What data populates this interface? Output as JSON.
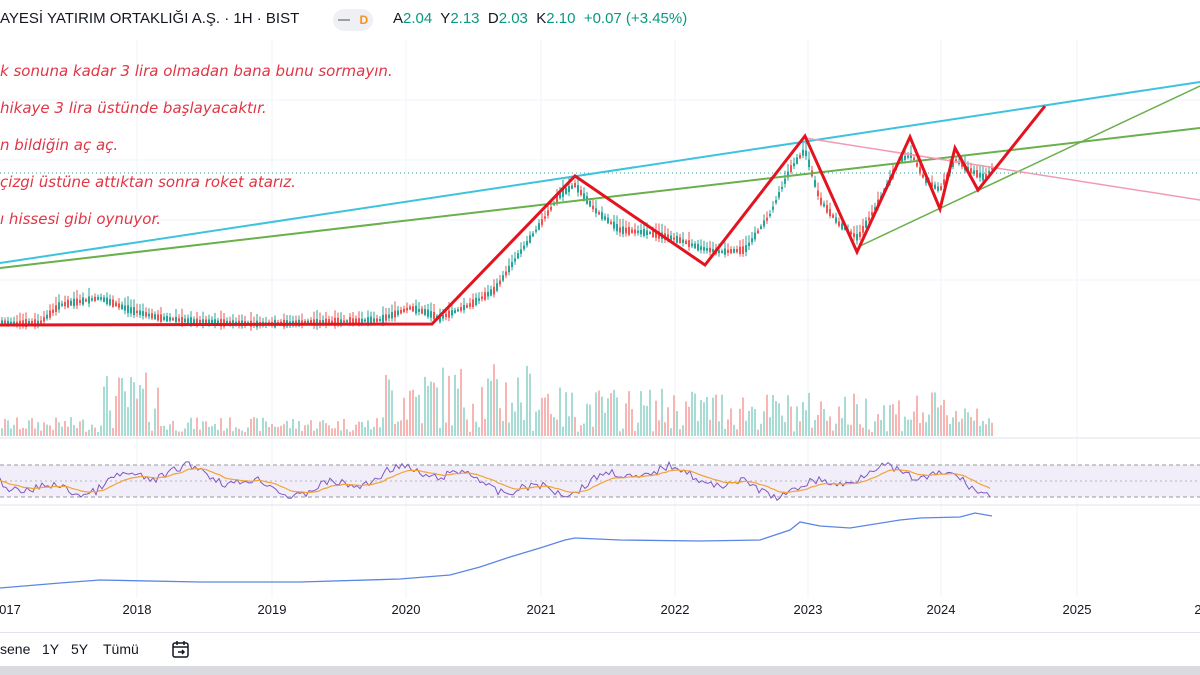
{
  "header": {
    "symbol_title": "AYESİ YATIRIM ORTAKLIĞI A.Ş. · 1H · BIST",
    "badge": "D",
    "ohlc": {
      "o_key": "A",
      "o_val": "2.04",
      "h_key": "Y",
      "h_val": "2.13",
      "l_key": "D",
      "l_val": "2.03",
      "c_key": "K",
      "c_val": "2.10",
      "change": "+0.07 (+3.45%)"
    }
  },
  "notes": [
    "k sonuna kadar 3 lira olmadan bana bunu sormayın.",
    "hikaye 3 lira üstünde başlayacaktır.",
    "n bildiğin aç aç.",
    "çizgi üstüne attıktan sonra roket atarız.",
    "ı hissesi gibi oynuyor."
  ],
  "x_axis": {
    "labels": [
      "017",
      "2018",
      "2019",
      "2020",
      "2021",
      "2022",
      "2023",
      "2024",
      "2025",
      "2"
    ]
  },
  "bottom_bar": {
    "ranges": [
      "sene",
      "1Y",
      "5Y",
      "Tümü"
    ],
    "icon": "calendar-goto-icon"
  },
  "colors": {
    "up": "#26a69a",
    "down": "#ef5350",
    "annotation_red": "#e3141f",
    "trend_cyan": "#3ec3dd",
    "trend_green": "#6ab04c",
    "trend_pink": "#f29bb0",
    "rsi_line": "#7e57c2",
    "rsi_ma": "#f0a33a",
    "lower_line": "#5b86e5"
  },
  "chart_data": {
    "type": "line",
    "title": "",
    "x": [
      "2017",
      "2018",
      "2019",
      "2020",
      "2021",
      "2022",
      "2023",
      "2024"
    ],
    "series": [
      {
        "values": [
          0.6,
          0.75,
          0.6,
          0.62,
          2.2,
          1.65,
          2.6,
          2.1
        ]
      }
    ],
    "xlabel": "",
    "ylabel": "",
    "grid": true
  }
}
